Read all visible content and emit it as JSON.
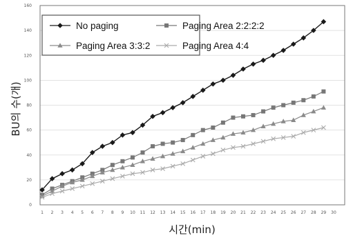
{
  "chart_data": {
    "type": "line",
    "xlabel": "시간(min)",
    "ylabel": "BU의 수(개)",
    "xlim": [
      1,
      30
    ],
    "ylim": [
      0,
      160
    ],
    "x_ticks": [
      1,
      2,
      3,
      4,
      5,
      6,
      7,
      8,
      9,
      10,
      11,
      12,
      13,
      14,
      15,
      16,
      17,
      18,
      19,
      20,
      21,
      22,
      23,
      24,
      25,
      26,
      27,
      28,
      29,
      30
    ],
    "y_ticks": [
      0,
      20,
      40,
      60,
      80,
      100,
      120,
      140,
      160
    ],
    "grid": true,
    "legend_placement": "top-left",
    "series": [
      {
        "name": "No paging",
        "color": "#1a1a1a",
        "marker": "diamond",
        "x": [
          1,
          2,
          3,
          4,
          5,
          6,
          7,
          8,
          9,
          10,
          11,
          12,
          13,
          14,
          15,
          16,
          17,
          18,
          19,
          20,
          21,
          22,
          23,
          24,
          25,
          26,
          27,
          28,
          29
        ],
        "values": [
          12,
          21,
          25,
          28,
          33,
          42,
          47,
          50,
          56,
          58,
          64,
          71,
          74,
          78,
          82,
          87,
          92,
          97,
          100,
          104,
          109,
          113,
          116,
          120,
          124,
          129,
          134,
          140,
          147
        ]
      },
      {
        "name": "Paging Area 2:2:2:2",
        "color": "#777777",
        "marker": "square",
        "x": [
          1,
          2,
          3,
          4,
          5,
          6,
          7,
          8,
          9,
          10,
          11,
          12,
          13,
          14,
          15,
          16,
          17,
          18,
          19,
          20,
          21,
          22,
          23,
          24,
          25,
          26,
          27,
          28,
          29
        ],
        "values": [
          8,
          13,
          16,
          19,
          22,
          25,
          28,
          32,
          35,
          38,
          42,
          47,
          49,
          50,
          52,
          56,
          60,
          62,
          66,
          70,
          71,
          72,
          75,
          78,
          80,
          82,
          84,
          87,
          91
        ]
      },
      {
        "name": "Paging Area 3:3:2",
        "color": "#8a8a8a",
        "marker": "triangle",
        "x": [
          1,
          2,
          3,
          4,
          5,
          6,
          7,
          8,
          9,
          10,
          11,
          12,
          13,
          14,
          15,
          16,
          17,
          18,
          19,
          20,
          21,
          22,
          23,
          24,
          25,
          26,
          27,
          28,
          29
        ],
        "values": [
          7,
          11,
          15,
          18,
          20,
          23,
          26,
          28,
          30,
          32,
          35,
          37,
          39,
          41,
          43,
          46,
          49,
          52,
          54,
          57,
          58,
          60,
          63,
          65,
          67,
          68,
          72,
          75,
          78
        ]
      },
      {
        "name": "Paging Area 4:4",
        "color": "#aaaaaa",
        "marker": "cross",
        "x": [
          1,
          2,
          3,
          4,
          5,
          6,
          7,
          8,
          9,
          10,
          11,
          12,
          13,
          14,
          15,
          16,
          17,
          18,
          19,
          20,
          21,
          22,
          23,
          24,
          25,
          26,
          27,
          28,
          29
        ],
        "values": [
          6,
          9,
          11,
          13,
          15,
          17,
          19,
          21,
          23,
          25,
          26,
          28,
          29,
          31,
          33,
          36,
          39,
          41,
          44,
          46,
          47,
          49,
          51,
          53,
          54,
          55,
          58,
          60,
          62
        ]
      }
    ]
  }
}
